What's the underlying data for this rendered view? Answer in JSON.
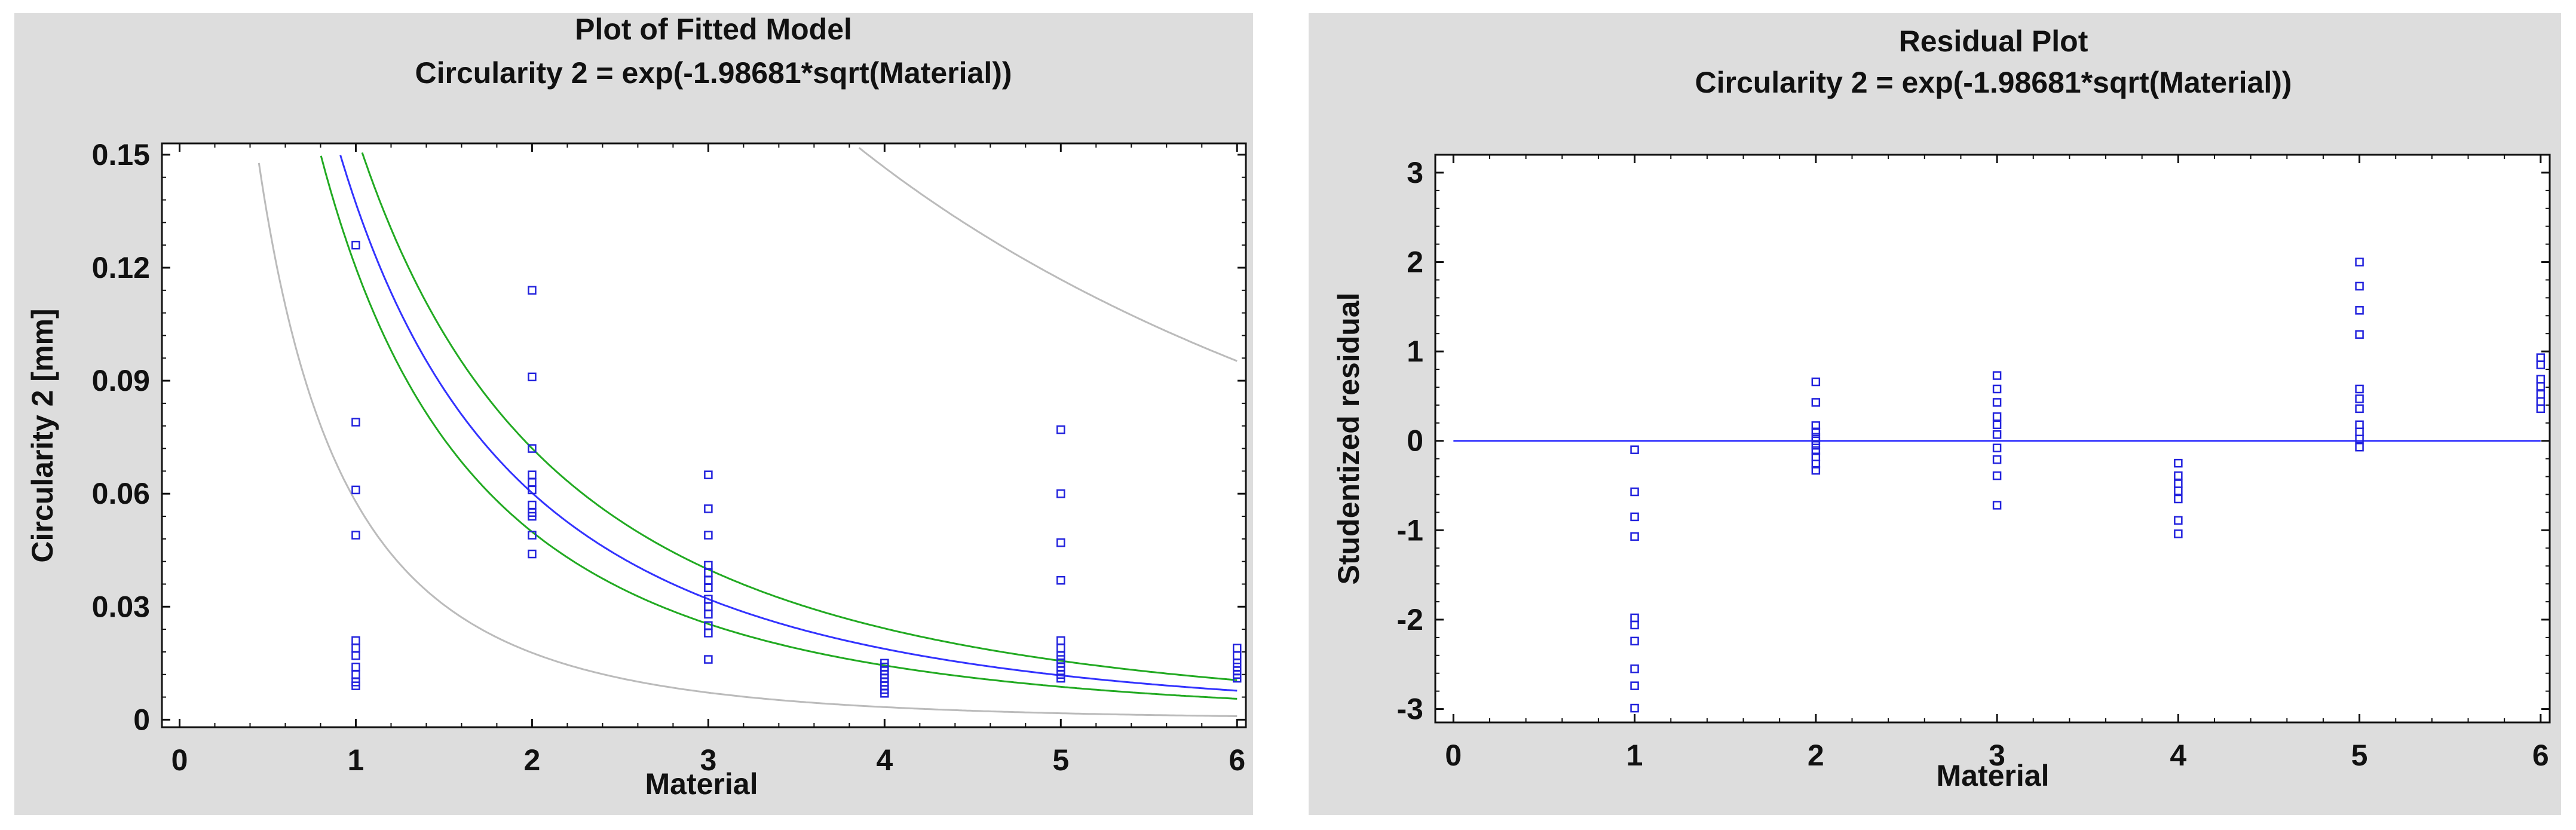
{
  "chart_data": [
    {
      "type": "scatter",
      "title": "Plot of Fitted Model",
      "subtitle": "Circularity 2 = exp(-1.98681*sqrt(Material))",
      "xlabel": "Material",
      "ylabel": "Circularity 2 [mm]",
      "xlim": [
        -0.1,
        6.05
      ],
      "ylim": [
        -0.002,
        0.153
      ],
      "x_ticks": [
        "0",
        "1",
        "2",
        "3",
        "4",
        "5",
        "6"
      ],
      "y_ticks": [
        "0",
        "0.03",
        "0.06",
        "0.09",
        "0.12",
        "0.15"
      ],
      "series": [
        {
          "name": "Observations",
          "marker": "square",
          "color": "#2222dd",
          "points": [
            [
              1,
              0.126
            ],
            [
              1,
              0.079
            ],
            [
              1,
              0.061
            ],
            [
              1,
              0.049
            ],
            [
              1,
              0.021
            ],
            [
              1,
              0.019
            ],
            [
              1,
              0.017
            ],
            [
              1,
              0.014
            ],
            [
              1,
              0.012
            ],
            [
              1,
              0.01
            ],
            [
              1,
              0.009
            ],
            [
              2,
              0.114
            ],
            [
              2,
              0.091
            ],
            [
              2,
              0.072
            ],
            [
              2,
              0.065
            ],
            [
              2,
              0.063
            ],
            [
              2,
              0.061
            ],
            [
              2,
              0.057
            ],
            [
              2,
              0.055
            ],
            [
              2,
              0.054
            ],
            [
              2,
              0.049
            ],
            [
              2,
              0.044
            ],
            [
              3,
              0.065
            ],
            [
              3,
              0.056
            ],
            [
              3,
              0.049
            ],
            [
              3,
              0.041
            ],
            [
              3,
              0.039
            ],
            [
              3,
              0.037
            ],
            [
              3,
              0.035
            ],
            [
              3,
              0.032
            ],
            [
              3,
              0.03
            ],
            [
              3,
              0.028
            ],
            [
              3,
              0.025
            ],
            [
              3,
              0.023
            ],
            [
              3,
              0.016
            ],
            [
              4,
              0.015
            ],
            [
              4,
              0.014
            ],
            [
              4,
              0.013
            ],
            [
              4,
              0.012
            ],
            [
              4,
              0.011
            ],
            [
              4,
              0.01
            ],
            [
              4,
              0.009
            ],
            [
              4,
              0.008
            ],
            [
              4,
              0.007
            ],
            [
              5,
              0.077
            ],
            [
              5,
              0.06
            ],
            [
              5,
              0.047
            ],
            [
              5,
              0.037
            ],
            [
              5,
              0.021
            ],
            [
              5,
              0.019
            ],
            [
              5,
              0.017
            ],
            [
              5,
              0.016
            ],
            [
              5,
              0.015
            ],
            [
              5,
              0.014
            ],
            [
              5,
              0.013
            ],
            [
              5,
              0.012
            ],
            [
              5,
              0.011
            ],
            [
              6,
              0.019
            ],
            [
              6,
              0.017
            ],
            [
              6,
              0.015
            ],
            [
              6,
              0.014
            ],
            [
              6,
              0.013
            ],
            [
              6,
              0.012
            ],
            [
              6,
              0.011
            ]
          ]
        },
        {
          "name": "Fitted model",
          "type": "line",
          "color": "#3333ff",
          "model": "exp(-1.98681*sqrt(x))"
        },
        {
          "name": "Confidence limits",
          "type": "line",
          "color": "#22aa22",
          "model_upper": "exp(-1.86*sqrt(x))",
          "model_lower": "exp(-2.12*sqrt(x))"
        },
        {
          "name": "Prediction limits",
          "type": "line",
          "color": "#bbbbbb",
          "model_upper": "exp(-0.96*sqrt(x))",
          "model_lower": "exp(-2.85*sqrt(x))"
        }
      ]
    },
    {
      "type": "scatter",
      "title": "Residual Plot",
      "subtitle": "Circularity 2 = exp(-1.98681*sqrt(Material))",
      "xlabel": "Material",
      "ylabel": "Studentized residual",
      "xlim": [
        -0.1,
        6.05
      ],
      "ylim": [
        -3.15,
        3.2
      ],
      "x_ticks": [
        "0",
        "1",
        "2",
        "3",
        "4",
        "5",
        "6"
      ],
      "y_ticks": [
        "-3",
        "-2",
        "-1",
        "0",
        "1",
        "2",
        "3"
      ],
      "reference_line": 0,
      "series": [
        {
          "name": "Residuals",
          "marker": "square",
          "color": "#2222dd",
          "points": [
            [
              1,
              -0.1
            ],
            [
              1,
              -0.57
            ],
            [
              1,
              -0.85
            ],
            [
              1,
              -1.07
            ],
            [
              1,
              -1.98
            ],
            [
              1,
              -2.06
            ],
            [
              1,
              -2.24
            ],
            [
              1,
              -2.55
            ],
            [
              1,
              -2.74
            ],
            [
              1,
              -2.99
            ],
            [
              2,
              0.66
            ],
            [
              2,
              0.43
            ],
            [
              2,
              0.17
            ],
            [
              2,
              0.1
            ],
            [
              2,
              0.04
            ],
            [
              2,
              0.0
            ],
            [
              2,
              -0.05
            ],
            [
              2,
              -0.11
            ],
            [
              2,
              -0.18
            ],
            [
              2,
              -0.26
            ],
            [
              2,
              -0.33
            ],
            [
              3,
              0.73
            ],
            [
              3,
              0.58
            ],
            [
              3,
              0.43
            ],
            [
              3,
              0.27
            ],
            [
              3,
              0.18
            ],
            [
              3,
              0.07
            ],
            [
              3,
              -0.08
            ],
            [
              3,
              -0.21
            ],
            [
              3,
              -0.39
            ],
            [
              3,
              -0.72
            ],
            [
              4,
              -0.25
            ],
            [
              4,
              -0.39
            ],
            [
              4,
              -0.48
            ],
            [
              4,
              -0.56
            ],
            [
              4,
              -0.65
            ],
            [
              4,
              -0.89
            ],
            [
              4,
              -1.04
            ],
            [
              5,
              2.0
            ],
            [
              5,
              1.73
            ],
            [
              5,
              1.46
            ],
            [
              5,
              1.19
            ],
            [
              5,
              0.58
            ],
            [
              5,
              0.47
            ],
            [
              5,
              0.36
            ],
            [
              5,
              0.18
            ],
            [
              5,
              0.1
            ],
            [
              5,
              0.02
            ],
            [
              5,
              -0.07
            ],
            [
              6,
              0.93
            ],
            [
              6,
              0.85
            ],
            [
              6,
              0.69
            ],
            [
              6,
              0.61
            ],
            [
              6,
              0.52
            ],
            [
              6,
              0.44
            ],
            [
              6,
              0.36
            ]
          ]
        }
      ]
    }
  ]
}
